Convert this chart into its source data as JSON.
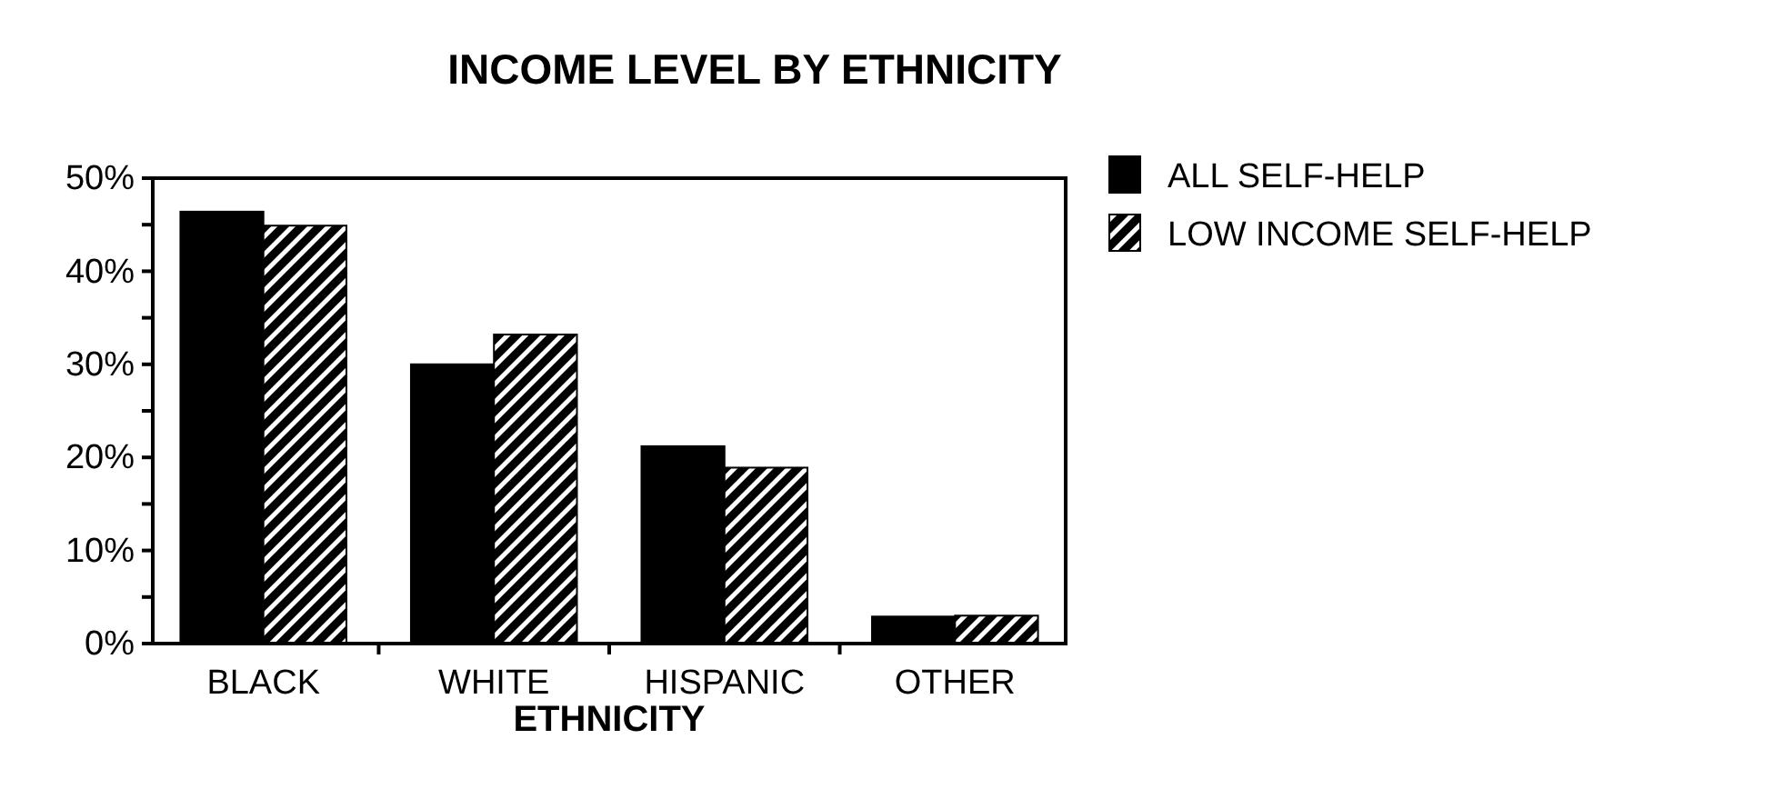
{
  "chart_data": {
    "type": "bar",
    "title": "INCOME LEVEL BY ETHNICITY",
    "xlabel": "ETHNICITY",
    "categories": [
      "BLACK",
      "WHITE",
      "HISPANIC",
      "OTHER"
    ],
    "series": [
      {
        "name": "ALL SELF-HELP",
        "color": "#000000",
        "values": [
          46.4,
          30.0,
          21.2,
          2.9
        ]
      },
      {
        "name": "LOW INCOME SELF-HELP",
        "color": "#000000",
        "values": [
          44.9,
          33.2,
          18.9,
          3.0
        ]
      }
    ],
    "ylim": [
      0,
      50
    ],
    "yticks": [
      {
        "value": 0,
        "label": "0%"
      },
      {
        "value": 5,
        "label": null
      },
      {
        "value": 10,
        "label": "10%"
      },
      {
        "value": 15,
        "label": null
      },
      {
        "value": 20,
        "label": "20%"
      },
      {
        "value": 25,
        "label": null
      },
      {
        "value": 30,
        "label": "30%"
      },
      {
        "value": 35,
        "label": null
      },
      {
        "value": 40,
        "label": "40%"
      },
      {
        "value": 45,
        "label": null
      },
      {
        "value": 50,
        "label": "50%"
      }
    ],
    "legend": "right"
  }
}
